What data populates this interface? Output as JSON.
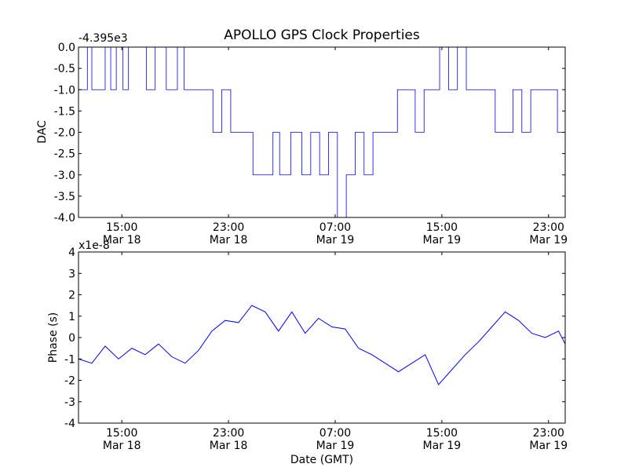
{
  "figure": {
    "title": "APOLLO GPS Clock Properties",
    "xlabel": "Date (GMT)"
  },
  "chart_data": [
    {
      "type": "line",
      "title": "APOLLO GPS Clock Properties",
      "ylabel": "DAC",
      "y_offset_label": "-4.395e3",
      "y_offset": -4395,
      "xlim": [
        "2013-03-18 11:45",
        "2013-03-20 00:15"
      ],
      "ylim": [
        -4.0,
        0.0
      ],
      "y_ticks": [
        0.0,
        -0.5,
        -1.0,
        -1.5,
        -2.0,
        -2.5,
        -3.0,
        -3.5,
        -4.0
      ],
      "y_tick_labels": [
        "0.0",
        "-0.5",
        "-1.0",
        "-1.5",
        "-2.0",
        "-2.5",
        "-3.0",
        "-3.5",
        "-4.0"
      ],
      "x_ticks": [
        "2013-03-18 15:00",
        "2013-03-18 23:00",
        "2013-03-19 07:00",
        "2013-03-19 15:00",
        "2013-03-19 23:00"
      ],
      "x_tick_labels": [
        [
          "15:00",
          "Mar 18"
        ],
        [
          "23:00",
          "Mar 18"
        ],
        [
          "07:00",
          "Mar 19"
        ],
        [
          "15:00",
          "Mar 19"
        ],
        [
          "23:00",
          "Mar 19"
        ]
      ],
      "grid": false,
      "color": "#0000ff",
      "series": [
        {
          "x": [
            "2013-03-18 11:45",
            "2013-03-18 12:05",
            "2013-03-18 12:25",
            "2013-03-18 12:45",
            "2013-03-18 13:15",
            "2013-03-18 13:45",
            "2013-03-18 14:10",
            "2013-03-18 14:35",
            "2013-03-18 15:05",
            "2013-03-18 15:30",
            "2013-03-18 16:10",
            "2013-03-18 16:50",
            "2013-03-18 17:30",
            "2013-03-18 18:20",
            "2013-03-18 19:10",
            "2013-03-18 19:40",
            "2013-03-18 20:30",
            "2013-03-18 21:10",
            "2013-03-18 21:50",
            "2013-03-18 22:30",
            "2013-03-18 23:10",
            "2013-03-18 23:40",
            "2013-03-19 00:20",
            "2013-03-19 00:50",
            "2013-03-19 01:30",
            "2013-03-19 02:20",
            "2013-03-19 02:50",
            "2013-03-19 03:40",
            "2013-03-19 04:30",
            "2013-03-19 05:10",
            "2013-03-19 05:50",
            "2013-03-19 06:30",
            "2013-03-19 07:10",
            "2013-03-19 07:50",
            "2013-03-19 08:30",
            "2013-03-19 09:10",
            "2013-03-19 09:50",
            "2013-03-19 10:30",
            "2013-03-19 11:10",
            "2013-03-19 11:40",
            "2013-03-19 12:20",
            "2013-03-19 13:00",
            "2013-03-19 13:40",
            "2013-03-19 14:20",
            "2013-03-19 14:50",
            "2013-03-19 15:30",
            "2013-03-19 16:10",
            "2013-03-19 16:50",
            "2013-03-19 17:40",
            "2013-03-19 18:20",
            "2013-03-19 19:00",
            "2013-03-19 19:40",
            "2013-03-19 20:20",
            "2013-03-19 21:00",
            "2013-03-19 21:40",
            "2013-03-19 22:20",
            "2013-03-19 23:00",
            "2013-03-19 23:40",
            "2013-03-20 00:15"
          ],
          "y": [
            -1.0,
            -1.0,
            0.0,
            -1.0,
            -1.0,
            0.0,
            -1.0,
            0.0,
            -1.0,
            0.0,
            0.0,
            -1.0,
            0.0,
            -1.0,
            0.0,
            -1.0,
            -1.0,
            -1.0,
            -2.0,
            -1.0,
            -2.0,
            -2.0,
            -2.0,
            -3.0,
            -3.0,
            -2.0,
            -3.0,
            -2.0,
            -3.0,
            -2.0,
            -3.0,
            -2.0,
            -4.0,
            -3.0,
            -2.0,
            -3.0,
            -2.0,
            -2.0,
            -2.0,
            -1.0,
            -1.0,
            -2.0,
            -1.0,
            -1.0,
            0.0,
            -1.0,
            0.0,
            -1.0,
            -1.0,
            -1.0,
            -2.0,
            -2.0,
            -1.0,
            -2.0,
            -1.0,
            -1.0,
            -1.0,
            -2.0,
            -2.0
          ]
        }
      ]
    },
    {
      "type": "line",
      "ylabel": "Phase (s)",
      "y_offset_label": "x1e-8",
      "y_scale": 1e-08,
      "xlabel": "Date (GMT)",
      "xlim": [
        "2013-03-18 11:45",
        "2013-03-20 00:15"
      ],
      "ylim": [
        -4,
        4
      ],
      "y_ticks": [
        4,
        3,
        2,
        1,
        0,
        -1,
        -2,
        -3,
        -4
      ],
      "y_tick_labels": [
        "4",
        "3",
        "2",
        "1",
        "0",
        "-1",
        "-2",
        "-3",
        "-4"
      ],
      "x_ticks": [
        "2013-03-18 15:00",
        "2013-03-18 23:00",
        "2013-03-19 07:00",
        "2013-03-19 15:00",
        "2013-03-19 23:00"
      ],
      "x_tick_labels": [
        [
          "15:00",
          "Mar 18"
        ],
        [
          "23:00",
          "Mar 18"
        ],
        [
          "07:00",
          "Mar 19"
        ],
        [
          "15:00",
          "Mar 19"
        ],
        [
          "23:00",
          "Mar 19"
        ]
      ],
      "grid": false,
      "color": "#0000ff",
      "series": [
        {
          "x": [
            "2013-03-18 11:45",
            "2013-03-18 12:45",
            "2013-03-18 13:45",
            "2013-03-18 14:45",
            "2013-03-18 15:45",
            "2013-03-18 16:45",
            "2013-03-18 17:45",
            "2013-03-18 18:45",
            "2013-03-18 19:45",
            "2013-03-18 20:45",
            "2013-03-18 21:45",
            "2013-03-18 22:45",
            "2013-03-18 23:45",
            "2013-03-19 00:45",
            "2013-03-19 01:45",
            "2013-03-19 02:45",
            "2013-03-19 03:45",
            "2013-03-19 04:45",
            "2013-03-19 05:45",
            "2013-03-19 06:45",
            "2013-03-19 07:45",
            "2013-03-19 08:45",
            "2013-03-19 09:45",
            "2013-03-19 10:45",
            "2013-03-19 11:45",
            "2013-03-19 12:45",
            "2013-03-19 13:45",
            "2013-03-19 14:45",
            "2013-03-19 15:45",
            "2013-03-19 16:45",
            "2013-03-19 17:45",
            "2013-03-19 18:45",
            "2013-03-19 19:45",
            "2013-03-19 20:45",
            "2013-03-19 21:45",
            "2013-03-19 22:45",
            "2013-03-19 23:45",
            "2013-03-20 00:15"
          ],
          "y": [
            -1.0,
            -1.2,
            -0.4,
            -1.0,
            -0.5,
            -0.8,
            -0.3,
            -0.9,
            -1.2,
            -0.6,
            0.3,
            0.8,
            0.7,
            1.5,
            1.2,
            0.3,
            1.2,
            0.2,
            0.9,
            0.5,
            0.4,
            -0.5,
            -0.8,
            -1.2,
            -1.6,
            -1.2,
            -0.8,
            -2.2,
            -1.5,
            -0.8,
            -0.2,
            0.5,
            1.2,
            0.8,
            0.2,
            0.0,
            0.3,
            -0.3
          ]
        }
      ]
    }
  ]
}
